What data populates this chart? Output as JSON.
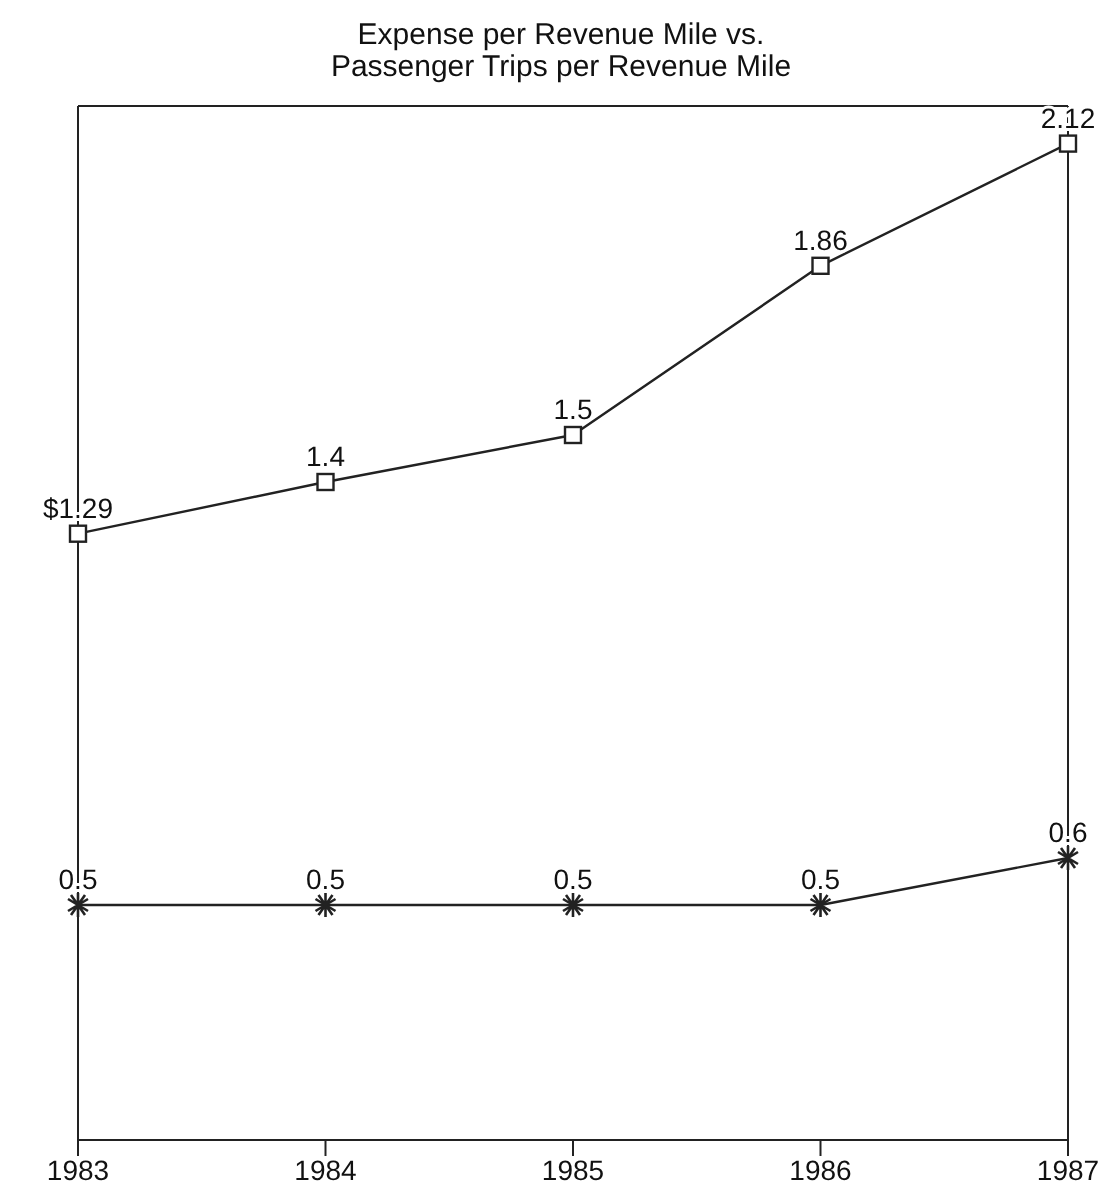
{
  "chart_data": {
    "type": "line",
    "title": "Expense per Revenue Mile vs.\nPassenger Trips per Revenue Mile",
    "categories": [
      "1983",
      "1984",
      "1985",
      "1986",
      "1987"
    ],
    "series": [
      {
        "color": "#222222",
        "marker": "square",
        "values": [
          1.29,
          1.4,
          1.5,
          1.86,
          2.12
        ],
        "value_labels": [
          "$1.29",
          "1.4",
          "1.5",
          "1.86",
          "2.12"
        ]
      },
      {
        "color": "#222222",
        "marker": "cross",
        "values": [
          0.5,
          0.5,
          0.5,
          0.5,
          0.6
        ],
        "value_labels": [
          "0.5",
          "0.5",
          "0.5",
          "0.5",
          "0.6"
        ]
      }
    ],
    "tick_labels": "x"
  }
}
